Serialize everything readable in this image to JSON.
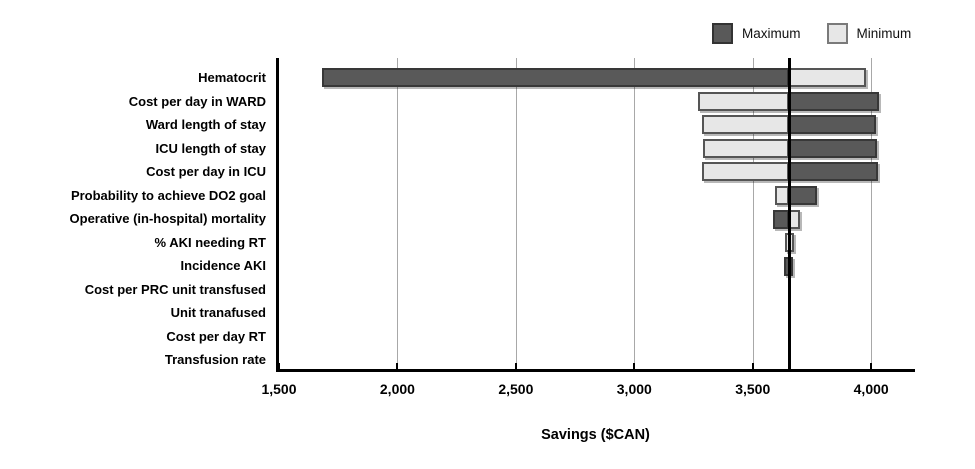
{
  "legend": [
    {
      "label": "Maximum",
      "color": "#595959"
    },
    {
      "label": "Minimum",
      "color": "#e7e7e7"
    }
  ],
  "colors": {
    "maximum_fill": "#595959",
    "minimum_fill": "#e7e7e7",
    "bar_border_dark": "#383838",
    "bar_border_light": "#555555",
    "gridline": "#a8a8a8",
    "axis": "#000000",
    "background": "#ffffff"
  },
  "chart_data": {
    "type": "bar",
    "orientation": "horizontal",
    "subtype": "tornado",
    "title": "",
    "xlabel": "Savings ($CAN)",
    "ylabel": "",
    "xlim": [
      1500,
      4185
    ],
    "baseline": 3655,
    "grid": true,
    "legend_position": "top-right",
    "xticks": [
      1500,
      2000,
      2500,
      3000,
      3500,
      4000
    ],
    "xtick_labels": [
      "1,500",
      "2,000",
      "2,500",
      "3,000",
      "3,500",
      "4,000"
    ],
    "rows": [
      {
        "label": "Hematocrit",
        "maximum": [
          1680,
          3655
        ],
        "minimum": [
          3655,
          3980
        ]
      },
      {
        "label": "Cost per day in WARD",
        "maximum": [
          3655,
          4035
        ],
        "minimum": [
          3270,
          3655
        ]
      },
      {
        "label": "Ward length of stay",
        "maximum": [
          3655,
          4020
        ],
        "minimum": [
          3285,
          3655
        ]
      },
      {
        "label": "ICU length of stay",
        "maximum": [
          3655,
          4025
        ],
        "minimum": [
          3290,
          3655
        ]
      },
      {
        "label": "Cost per day in ICU",
        "maximum": [
          3655,
          4030
        ],
        "minimum": [
          3285,
          3655
        ]
      },
      {
        "label": "Probability to achieve DO2 goal",
        "maximum": [
          3655,
          3770
        ],
        "minimum": [
          3595,
          3655
        ]
      },
      {
        "label": "Operative (in-hospital) mortality",
        "maximum": [
          3585,
          3655
        ],
        "minimum": [
          3655,
          3700
        ]
      },
      {
        "label": "% AKI needing RT",
        "maximum": null,
        "minimum": [
          3635,
          3675
        ]
      },
      {
        "label": "Incidence AKI",
        "maximum": [
          3630,
          3670
        ],
        "minimum": null
      },
      {
        "label": "Cost per PRC unit transfused",
        "maximum": null,
        "minimum": null
      },
      {
        "label": "Unit tranafused",
        "maximum": null,
        "minimum": null
      },
      {
        "label": "Cost per day RT",
        "maximum": null,
        "minimum": null
      },
      {
        "label": "Transfusion rate",
        "maximum": null,
        "minimum": null
      }
    ]
  }
}
